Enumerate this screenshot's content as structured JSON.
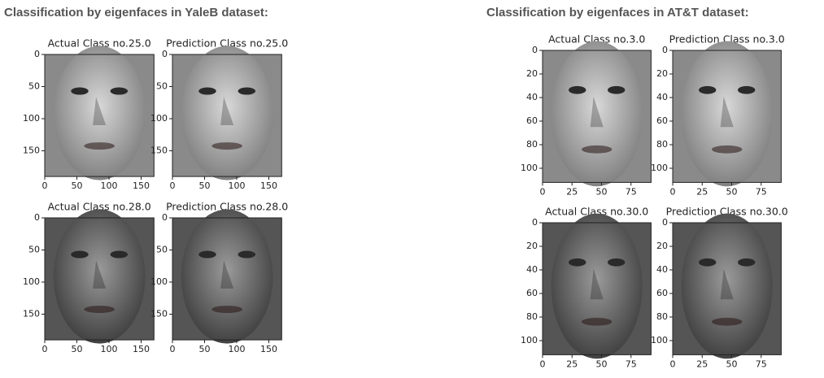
{
  "panels": [
    {
      "title": "Classification by eigenfaces in YaleB dataset:",
      "plots": [
        {
          "title": "Actual Class no.25.0",
          "xticks": [
            0,
            50,
            100,
            150
          ],
          "yticks": [
            0,
            50,
            100,
            150
          ]
        },
        {
          "title": "Prediction Class no.25.0",
          "xticks": [
            0,
            50,
            100,
            150
          ],
          "yticks": [
            0,
            50,
            100,
            150
          ]
        },
        {
          "title": "Actual Class no.28.0",
          "xticks": [
            0,
            50,
            100,
            150
          ],
          "yticks": [
            0,
            50,
            100,
            150
          ]
        },
        {
          "title": "Prediction Class no.28.0",
          "xticks": [
            0,
            50,
            100,
            150
          ],
          "yticks": [
            0,
            50,
            100,
            150
          ]
        }
      ]
    },
    {
      "title": "Classification by eigenfaces in AT&T dataset:",
      "plots": [
        {
          "title": "Actual Class no.3.0",
          "xticks": [
            0,
            25,
            50,
            75
          ],
          "yticks": [
            0,
            20,
            40,
            60,
            80,
            100
          ]
        },
        {
          "title": "Prediction Class no.3.0",
          "xticks": [
            0,
            25,
            50,
            75
          ],
          "yticks": [
            0,
            20,
            40,
            60,
            80,
            100
          ]
        },
        {
          "title": "Actual Class no.30.0",
          "xticks": [
            0,
            25,
            50,
            75
          ],
          "yticks": [
            0,
            20,
            40,
            60,
            80,
            100
          ]
        },
        {
          "title": "Prediction Class no.30.0",
          "xticks": [
            0,
            25,
            50,
            75
          ],
          "yticks": [
            0,
            20,
            40,
            60,
            80,
            100
          ]
        }
      ]
    }
  ]
}
